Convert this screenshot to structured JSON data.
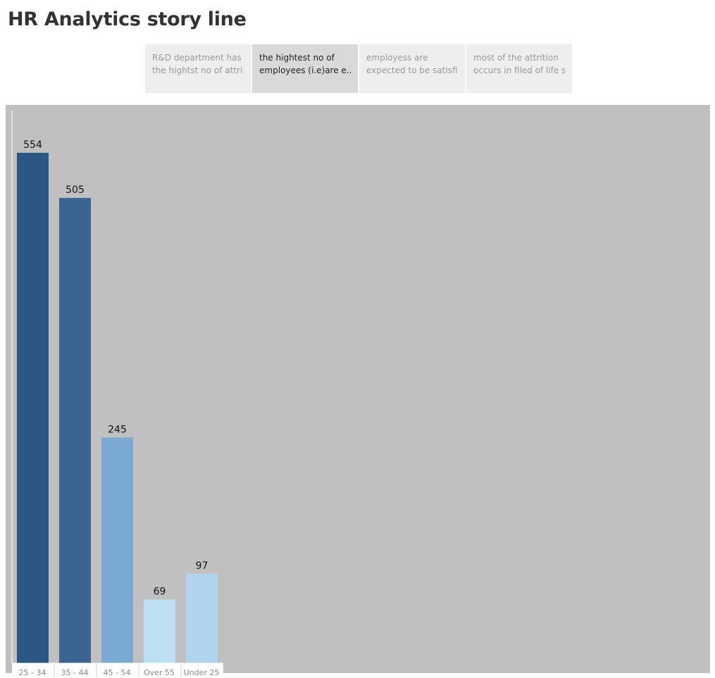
{
  "story": {
    "title": "HR Analytics story line",
    "points": [
      {
        "line1": "R&D department has",
        "line2": "the hightst no of attri..",
        "active": false
      },
      {
        "line1": "the hightest no of",
        "line2": "employees (i.e)are e..",
        "active": true
      },
      {
        "line1": "employess are",
        "line2": "expected to be satisfi..",
        "active": false
      },
      {
        "line1": "most of the attrition",
        "line2": "occurs in filed of life s..",
        "active": false
      }
    ]
  },
  "colors": {
    "panel_background": "#c0c0c0",
    "bar_colors": [
      "#2a5783",
      "#3a6591",
      "#7aaad1",
      "#bde0f2",
      "#b0d4ed"
    ]
  },
  "chart_data": {
    "type": "bar",
    "categories": [
      "25 - 34",
      "35 - 44",
      "45 - 54",
      "Over 55",
      "Under 25"
    ],
    "values": [
      554,
      505,
      245,
      69,
      97
    ],
    "title": "",
    "xlabel": "",
    "ylabel": "",
    "ylim": [
      0,
      554
    ],
    "grid": false,
    "legend": "none"
  }
}
